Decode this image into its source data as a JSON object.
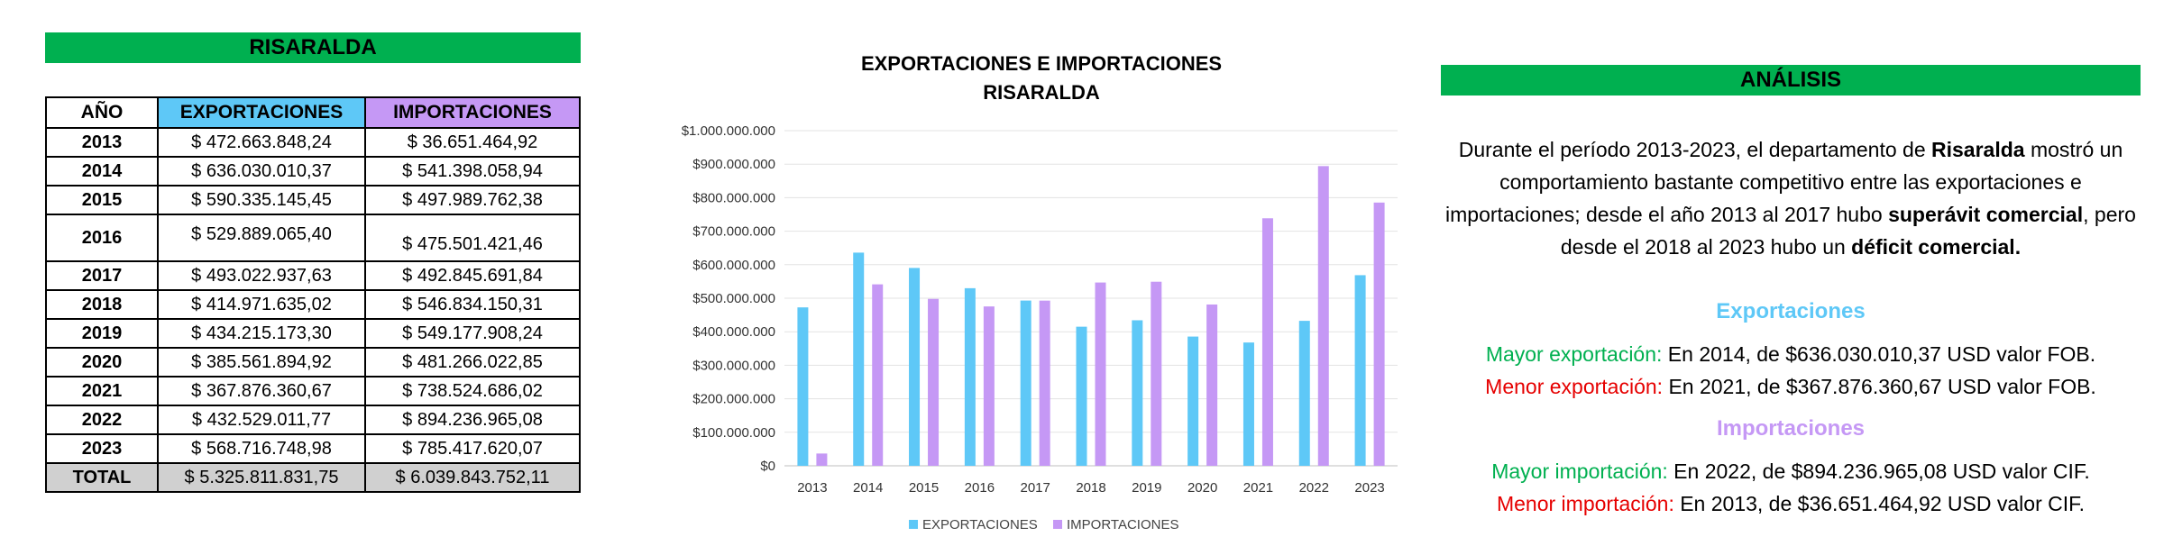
{
  "table": {
    "title": "RISARALDA",
    "headers": {
      "year": "AÑO",
      "exp": "EXPORTACIONES",
      "imp": "IMPORTACIONES"
    },
    "rows": [
      {
        "year": "2013",
        "exp": "$ 472.663.848,24",
        "imp": "$ 36.651.464,92"
      },
      {
        "year": "2014",
        "exp": "$ 636.030.010,37",
        "imp": "$ 541.398.058,94"
      },
      {
        "year": "2015",
        "exp": "$ 590.335.145,45",
        "imp": "$ 497.989.762,38"
      },
      {
        "year": "2016",
        "exp": "$ 529.889.065,40",
        "imp": "$ 475.501.421,46"
      },
      {
        "year": "2017",
        "exp": "$ 493.022.937,63",
        "imp": "$ 492.845.691,84"
      },
      {
        "year": "2018",
        "exp": "$ 414.971.635,02",
        "imp": "$ 546.834.150,31"
      },
      {
        "year": "2019",
        "exp": "$ 434.215.173,30",
        "imp": "$ 549.177.908,24"
      },
      {
        "year": "2020",
        "exp": "$ 385.561.894,92",
        "imp": "$ 481.266.022,85"
      },
      {
        "year": "2021",
        "exp": "$ 367.876.360,67",
        "imp": "$ 738.524.686,02"
      },
      {
        "year": "2022",
        "exp": "$ 432.529.011,77",
        "imp": "$ 894.236.965,08"
      },
      {
        "year": "2023",
        "exp": "$ 568.716.748,98",
        "imp": "$ 785.417.620,07"
      }
    ],
    "total": {
      "label": "TOTAL",
      "exp": "$ 5.325.811.831,75",
      "imp": "$ 6.039.843.752,11"
    }
  },
  "chart_data": {
    "type": "bar",
    "title_line1": "EXPORTACIONES E IMPORTACIONES",
    "title_line2": "RISARALDA",
    "categories": [
      "2013",
      "2014",
      "2015",
      "2016",
      "2017",
      "2018",
      "2019",
      "2020",
      "2021",
      "2022",
      "2023"
    ],
    "series": [
      {
        "name": "EXPORTACIONES",
        "color": "#5ec8f7",
        "values": [
          472663848.24,
          636030010.37,
          590335145.45,
          529889065.4,
          493022937.63,
          414971635.02,
          434215173.3,
          385561894.92,
          367876360.67,
          432529011.77,
          568716748.98
        ]
      },
      {
        "name": "IMPORTACIONES",
        "color": "#c598f5",
        "values": [
          36651464.92,
          541398058.94,
          497989762.38,
          475501421.46,
          492845691.84,
          546834150.31,
          549177908.24,
          481266022.85,
          738524686.02,
          894236965.08,
          785417620.07
        ]
      }
    ],
    "ylim": [
      0,
      1000000000
    ],
    "y_ticks": [
      0,
      100000000,
      200000000,
      300000000,
      400000000,
      500000000,
      600000000,
      700000000,
      800000000,
      900000000,
      1000000000
    ],
    "y_tick_labels": [
      "$0",
      "$100.000.000",
      "$200.000.000",
      "$300.000.000",
      "$400.000.000",
      "$500.000.000",
      "$600.000.000",
      "$700.000.000",
      "$800.000.000",
      "$900.000.000",
      "$1.000.000.000"
    ],
    "grid": true,
    "legend_position": "bottom"
  },
  "analysis": {
    "title": "ANÁLISIS",
    "p1": "Durante el período 2013-2023, el departamento de ",
    "p1_bold": "Risaralda",
    "p2": " mostró un comportamiento bastante competitivo entre las exportaciones e importaciones; desde el año 2013 al 2017 hubo ",
    "p2_bold": "superávit comercial",
    "p3": ", pero desde el 2018 al 2023 hubo un ",
    "p3_bold": "déficit comercial.",
    "exp_head": "Exportaciones",
    "max_exp_label": "Mayor exportación:",
    "max_exp_text": " En 2014, de $636.030.010,37 USD valor FOB.",
    "min_exp_label": "Menor exportación:",
    "min_exp_text": " En 2021, de $367.876.360,67 USD valor FOB.",
    "imp_head": "Importaciones",
    "max_imp_label": "Mayor importación:",
    "max_imp_text": " En 2022, de $894.236.965,08 USD valor CIF.",
    "min_imp_label": "Menor importación:",
    "min_imp_text": " En 2013, de $36.651.464,92 USD valor CIF."
  }
}
